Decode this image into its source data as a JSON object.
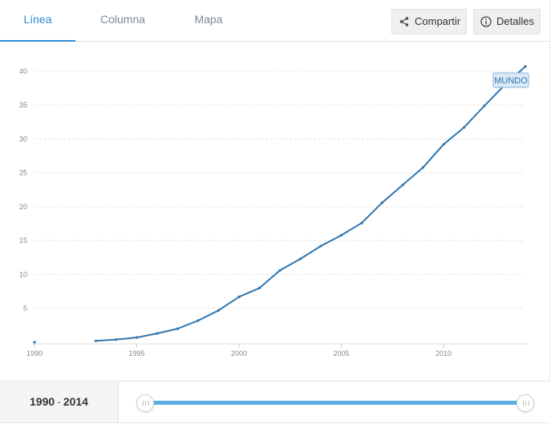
{
  "tabs": [
    {
      "label": "Línea",
      "active": true
    },
    {
      "label": "Columna",
      "active": false
    },
    {
      "label": "Mapa",
      "active": false
    }
  ],
  "toolbar": {
    "share_label": "Compartir",
    "details_label": "Detalles",
    "share_icon": "share-icon",
    "details_icon": "info-icon"
  },
  "colors": {
    "accent": "#2f8bd1",
    "series": "#2e76b1",
    "slider": "#5aaee0",
    "label_bg": "#dbe9f6"
  },
  "chart_data": {
    "type": "line",
    "title": "",
    "xlabel": "",
    "ylabel": "",
    "xlim": [
      1990,
      2014
    ],
    "ylim": [
      0,
      42
    ],
    "x_ticks": [
      1990,
      1995,
      2000,
      2005,
      2010
    ],
    "y_ticks": [
      5,
      10,
      15,
      20,
      25,
      30,
      35,
      40
    ],
    "grid": true,
    "series": [
      {
        "name": "MUNDO",
        "points": [
          {
            "x": 1990,
            "y": 0.0
          },
          {
            "x": 1993,
            "y": 0.2
          },
          {
            "x": 1994,
            "y": 0.4
          },
          {
            "x": 1995,
            "y": 0.7
          },
          {
            "x": 1996,
            "y": 1.3
          },
          {
            "x": 1997,
            "y": 2.0
          },
          {
            "x": 1998,
            "y": 3.2
          },
          {
            "x": 1999,
            "y": 4.7
          },
          {
            "x": 2000,
            "y": 6.7
          },
          {
            "x": 2001,
            "y": 8.0
          },
          {
            "x": 2002,
            "y": 10.6
          },
          {
            "x": 2003,
            "y": 12.3
          },
          {
            "x": 2004,
            "y": 14.2
          },
          {
            "x": 2005,
            "y": 15.8
          },
          {
            "x": 2006,
            "y": 17.6
          },
          {
            "x": 2007,
            "y": 20.6
          },
          {
            "x": 2008,
            "y": 23.2
          },
          {
            "x": 2009,
            "y": 25.8
          },
          {
            "x": 2010,
            "y": 29.2
          },
          {
            "x": 2011,
            "y": 31.7
          },
          {
            "x": 2012,
            "y": 34.9
          },
          {
            "x": 2013,
            "y": 38.0
          },
          {
            "x": 2014,
            "y": 40.7
          }
        ]
      }
    ]
  },
  "range": {
    "start": "1990",
    "separator": "-",
    "end": "2014"
  }
}
